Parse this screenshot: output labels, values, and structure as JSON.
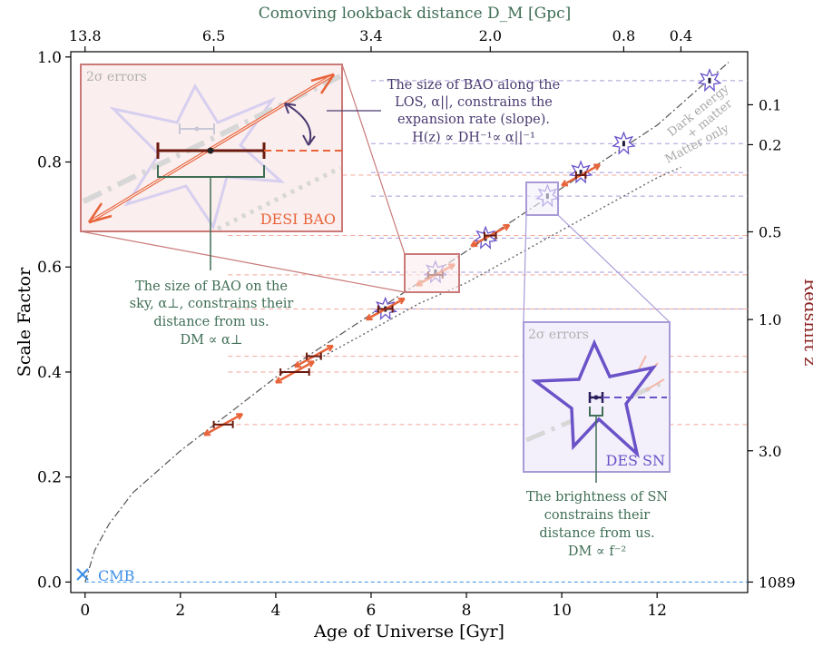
{
  "chart_data": {
    "type": "scatter",
    "title": "",
    "xlabel": "Age of Universe [Gyr]",
    "ylabel": "Scale Factor",
    "xlim": [
      -0.3,
      13.9
    ],
    "ylim": [
      -0.02,
      1.01
    ],
    "xticks": [
      0,
      2,
      4,
      6,
      8,
      10,
      12
    ],
    "yticks": [
      0.0,
      0.2,
      0.4,
      0.6,
      0.8,
      1.0
    ],
    "top_axis": {
      "label": "Comoving lookback distance D_M [Gpc]",
      "ticks": [
        {
          "label": "13.8",
          "x": 0.0
        },
        {
          "label": "6.5",
          "x": 2.7
        },
        {
          "label": "3.4",
          "x": 6.0
        },
        {
          "label": "2.0",
          "x": 8.5
        },
        {
          "label": "0.8",
          "x": 11.3
        },
        {
          "label": "0.4",
          "x": 12.5
        }
      ]
    },
    "right_axis": {
      "label": "Redshift z",
      "ticks": [
        {
          "label": "0.1",
          "a": 0.909
        },
        {
          "label": "0.2",
          "a": 0.833
        },
        {
          "label": "0.5",
          "a": 0.667
        },
        {
          "label": "1.0",
          "a": 0.5
        },
        {
          "label": "3.0",
          "a": 0.25
        },
        {
          "label": "1089",
          "a": 0.0
        }
      ]
    },
    "curves": [
      {
        "name": "Dark energy + matter",
        "x": [
          0,
          0.2,
          0.5,
          1,
          1.5,
          2,
          3,
          4,
          5,
          6,
          7,
          8,
          9,
          10,
          11,
          12,
          13,
          13.5
        ],
        "y": [
          0,
          0.06,
          0.11,
          0.17,
          0.21,
          0.25,
          0.32,
          0.39,
          0.45,
          0.51,
          0.57,
          0.63,
          0.69,
          0.75,
          0.81,
          0.87,
          0.95,
          0.99
        ]
      },
      {
        "name": "Matter only",
        "x": [
          4,
          5,
          6,
          7,
          8,
          9,
          10,
          11,
          12,
          12.5
        ],
        "y": [
          0.38,
          0.43,
          0.48,
          0.53,
          0.57,
          0.62,
          0.67,
          0.72,
          0.77,
          0.79
        ]
      }
    ],
    "desi_bao": [
      {
        "x": 2.9,
        "y": 0.3,
        "xerr": 0.2
      },
      {
        "x": 4.4,
        "y": 0.4,
        "xerr": 0.3
      },
      {
        "x": 4.8,
        "y": 0.43,
        "xerr": 0.15
      },
      {
        "x": 6.3,
        "y": 0.52,
        "xerr": 0.15
      },
      {
        "x": 7.35,
        "y": 0.585,
        "xerr": 0.15
      },
      {
        "x": 8.5,
        "y": 0.66,
        "xerr": 0.12
      },
      {
        "x": 10.4,
        "y": 0.775,
        "xerr": 0.1
      }
    ],
    "des_sn": [
      {
        "x": 6.3,
        "y": 0.52
      },
      {
        "x": 7.35,
        "y": 0.59
      },
      {
        "x": 8.4,
        "y": 0.655
      },
      {
        "x": 9.7,
        "y": 0.735
      },
      {
        "x": 10.4,
        "y": 0.78
      },
      {
        "x": 11.3,
        "y": 0.835
      },
      {
        "x": 13.1,
        "y": 0.955
      }
    ],
    "sn_hlines_y": [
      0.955,
      0.835,
      0.78,
      0.735,
      0.655,
      0.59,
      0.52
    ],
    "bao_hlines_y": [
      0.775,
      0.66,
      0.585,
      0.52,
      0.43,
      0.4,
      0.3
    ],
    "cmb": {
      "x": 0.0,
      "y": 0.0,
      "label": "CMB"
    },
    "curve_labels": {
      "dark_energy": [
        "Dark energy",
        "+ matter"
      ],
      "matter_only": "Matter only"
    },
    "annotations": {
      "bao_inset_errors": "2σ errors",
      "bao_inset_label": "DESI BAO",
      "sn_inset_errors": "2σ errors",
      "sn_inset_label": "DES SN",
      "los_text": [
        "The size of BAO along the",
        "LOS, α||, constrains the",
        "expansion rate (slope).",
        "H(z) ∝ DH⁻¹∝ α||⁻¹"
      ],
      "sky_text": [
        "The size of BAO on the",
        "sky, α⊥, constrains their",
        "distance from us.",
        "DM ∝ α⊥"
      ],
      "sn_text": [
        "The brightness of SN",
        "constrains their",
        "distance from us.",
        "DM ∝ f⁻²"
      ]
    },
    "colors": {
      "bao": "#e8643a",
      "bao_err": "#6b1a0f",
      "sn": "#6a52c8",
      "sky_text": "#3f6e55",
      "los_text": "#4a3a70",
      "cmb": "#3b8fe6",
      "redshift_label": "#8b2020",
      "top_label": "#3f6e55"
    },
    "grid": false,
    "legend": "none"
  }
}
